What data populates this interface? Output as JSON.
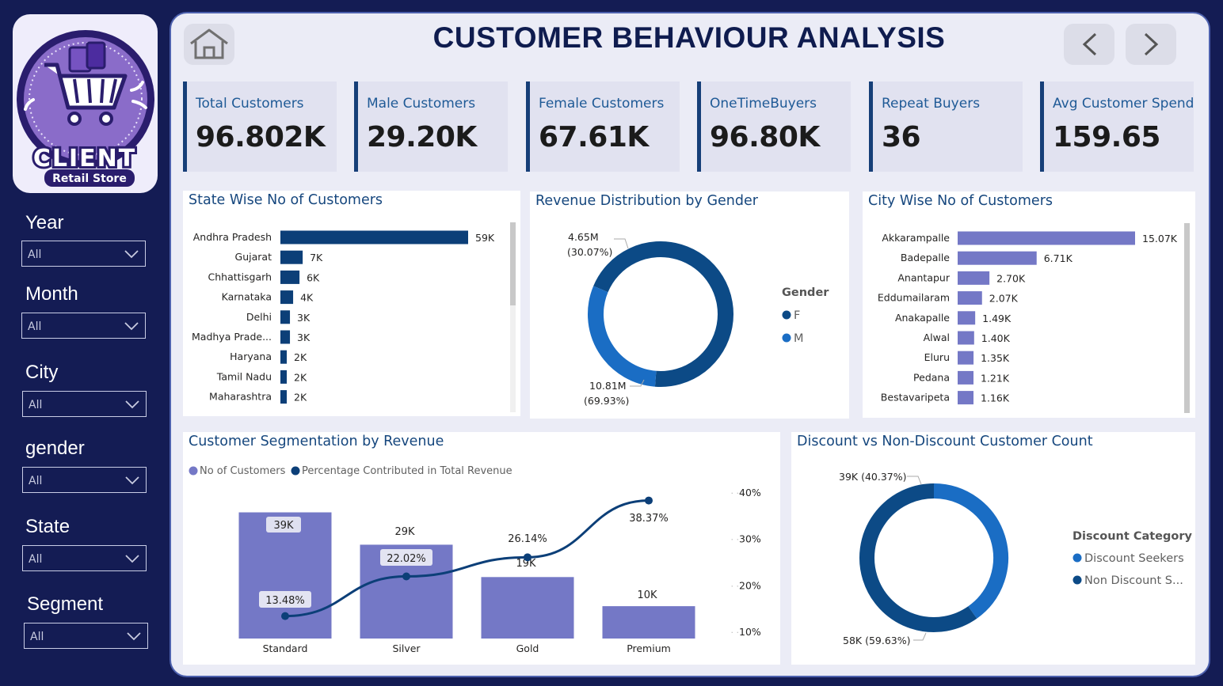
{
  "brand": {
    "logo_text": "CLIENT",
    "logo_subtext": "Retail Store"
  },
  "header": {
    "title": "CUSTOMER BEHAVIOUR ANALYSIS",
    "home_icon": "home-icon",
    "prev_icon": "chevron-left-icon",
    "next_icon": "chevron-right-icon"
  },
  "filters": [
    {
      "label": "Year",
      "value": "All"
    },
    {
      "label": "Month",
      "value": "All"
    },
    {
      "label": "City",
      "value": "All"
    },
    {
      "label": "gender",
      "value": "All"
    },
    {
      "label": "State",
      "value": "All"
    },
    {
      "label": "Segment",
      "value": "All"
    }
  ],
  "kpis": [
    {
      "label": "Total Customers",
      "value": "96.802K"
    },
    {
      "label": "Male Customers",
      "value": "29.20K"
    },
    {
      "label": "Female Customers",
      "value": "67.61K"
    },
    {
      "label": "OneTimeBuyers",
      "value": "96.80K"
    },
    {
      "label": "Repeat Buyers",
      "value": "36"
    },
    {
      "label": "Avg Customer Spend",
      "value": "159.65"
    }
  ],
  "colors": {
    "navy": "#0c3f78",
    "blue": "#1a6dc4",
    "lavender": "#7478c6",
    "bg": "#141c54"
  },
  "chart_data": [
    {
      "id": "state",
      "type": "bar",
      "orientation": "horizontal",
      "title": "State Wise No of Customers",
      "categories": [
        "Andhra Pradesh",
        "Gujarat",
        "Chhattisgarh",
        "Karnataka",
        "Delhi",
        "Madhya Prade...",
        "Haryana",
        "Tamil Nadu",
        "Maharashtra"
      ],
      "values": [
        59,
        7,
        6,
        4,
        3,
        3,
        2,
        2,
        2
      ],
      "labels": [
        "59K",
        "7K",
        "6K",
        "4K",
        "3K",
        "3K",
        "2K",
        "2K",
        "2K"
      ],
      "unit": "K"
    },
    {
      "id": "gender",
      "type": "pie",
      "donut": true,
      "title": "Revenue Distribution by Gender",
      "legend_title": "Gender",
      "categories": [
        "F",
        "M"
      ],
      "values": [
        10.81,
        4.65
      ],
      "labels": [
        "10.81M",
        "4.65M"
      ],
      "percents": [
        "(69.93%)",
        "(30.07%)"
      ],
      "colors": [
        "#0c4a86",
        "#1a6dc4"
      ]
    },
    {
      "id": "city",
      "type": "bar",
      "orientation": "horizontal",
      "title": "City Wise No of Customers",
      "categories": [
        "Akkarampalle",
        "Badepalle",
        "Anantapur",
        "Eddumailaram",
        "Anakapalle",
        "Alwal",
        "Eluru",
        "Pedana",
        "Bestavaripeta"
      ],
      "values": [
        15.07,
        6.71,
        2.7,
        2.07,
        1.49,
        1.4,
        1.35,
        1.21,
        1.16
      ],
      "labels": [
        "15.07K",
        "6.71K",
        "2.70K",
        "2.07K",
        "1.49K",
        "1.40K",
        "1.35K",
        "1.21K",
        "1.16K"
      ],
      "unit": "K"
    },
    {
      "id": "segment",
      "type": "bar",
      "combo_line": true,
      "title": "Customer Segmentation by Revenue",
      "categories": [
        "Standard",
        "Silver",
        "Gold",
        "Premium"
      ],
      "series": [
        {
          "name": "No of Customers",
          "values": [
            39,
            29,
            19,
            10
          ],
          "labels": [
            "39K",
            "29K",
            "19K",
            "10K"
          ]
        },
        {
          "name": "Percentage Contributed in Total Revenue",
          "values": [
            13.48,
            22.02,
            26.14,
            38.37
          ],
          "labels": [
            "13.48%",
            "22.02%",
            "26.14%",
            "38.37%"
          ]
        }
      ],
      "bar_ylim": [
        0,
        45
      ],
      "y2lim": [
        8.64,
        40
      ],
      "y2ticks": [
        "40%",
        "30%",
        "20%",
        "10%"
      ],
      "y2tick_values": [
        40,
        30,
        20,
        10
      ]
    },
    {
      "id": "discount",
      "type": "pie",
      "donut": true,
      "title": "Discount vs Non-Discount Customer Count",
      "legend_title": "Discount Category",
      "categories": [
        "Discount Seekers",
        "Non Discount S..."
      ],
      "values": [
        39,
        58
      ],
      "labels": [
        "39K (40.37%)",
        "58K (59.63%)"
      ],
      "colors": [
        "#1a6dc4",
        "#0c4a86"
      ]
    }
  ]
}
